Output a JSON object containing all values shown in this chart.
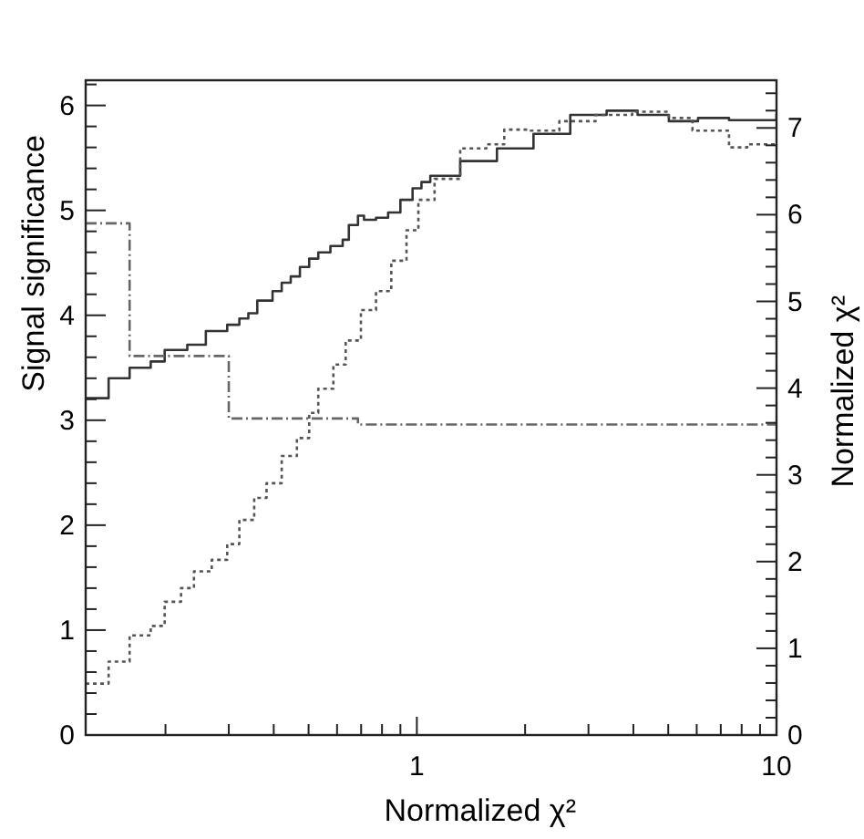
{
  "chart_data": {
    "type": "step",
    "xlabel": "Normalized χ²",
    "ylabel": "Signal significance",
    "y2label": "Normalized χ²",
    "log": "x",
    "xlim": [
      0.12,
      10
    ],
    "xticks": [
      {
        "value": 0.2,
        "label": null
      },
      {
        "value": 0.3,
        "label": null
      },
      {
        "value": 0.4,
        "label": null
      },
      {
        "value": 0.5,
        "label": null
      },
      {
        "value": 0.6,
        "label": null
      },
      {
        "value": 0.7,
        "label": null
      },
      {
        "value": 0.8,
        "label": null
      },
      {
        "value": 0.9,
        "label": null
      },
      1,
      {
        "value": 2,
        "label": null
      },
      {
        "value": 3,
        "label": null
      },
      {
        "value": 4,
        "label": null
      },
      {
        "value": 5,
        "label": null
      },
      {
        "value": 6,
        "label": null
      },
      {
        "value": 7,
        "label": null
      },
      {
        "value": 8,
        "label": null
      },
      {
        "value": 9,
        "label": null
      },
      10
    ],
    "ylim": [
      0,
      6.24
    ],
    "yticks": [
      0,
      {
        "value": 0.2,
        "label": null
      },
      {
        "value": 0.4,
        "label": null
      },
      {
        "value": 0.6,
        "label": null
      },
      {
        "value": 0.8,
        "label": null
      },
      1,
      {
        "value": 1.2,
        "label": null
      },
      {
        "value": 1.4,
        "label": null
      },
      {
        "value": 1.6,
        "label": null
      },
      {
        "value": 1.8,
        "label": null
      },
      2,
      {
        "value": 2.2,
        "label": null
      },
      {
        "value": 2.4,
        "label": null
      },
      {
        "value": 2.6,
        "label": null
      },
      {
        "value": 2.8,
        "label": null
      },
      3,
      {
        "value": 3.2,
        "label": null
      },
      {
        "value": 3.4,
        "label": null
      },
      {
        "value": 3.6,
        "label": null
      },
      {
        "value": 3.8,
        "label": null
      },
      4,
      {
        "value": 4.2,
        "label": null
      },
      {
        "value": 4.4,
        "label": null
      },
      {
        "value": 4.6,
        "label": null
      },
      {
        "value": 4.8,
        "label": null
      },
      5,
      {
        "value": 5.2,
        "label": null
      },
      {
        "value": 5.4,
        "label": null
      },
      {
        "value": 5.6,
        "label": null
      },
      {
        "value": 5.8,
        "label": null
      },
      6,
      {
        "value": 6.2,
        "label": null
      }
    ],
    "y2lim": [
      0,
      7.55
    ],
    "y2ticks": [
      0,
      {
        "value": 0.2,
        "label": null
      },
      {
        "value": 0.4,
        "label": null
      },
      {
        "value": 0.6,
        "label": null
      },
      {
        "value": 0.8,
        "label": null
      },
      1,
      {
        "value": 1.2,
        "label": null
      },
      {
        "value": 1.4,
        "label": null
      },
      {
        "value": 1.6,
        "label": null
      },
      {
        "value": 1.8,
        "label": null
      },
      2,
      {
        "value": 2.2,
        "label": null
      },
      {
        "value": 2.4,
        "label": null
      },
      {
        "value": 2.6,
        "label": null
      },
      {
        "value": 2.8,
        "label": null
      },
      3,
      {
        "value": 3.2,
        "label": null
      },
      {
        "value": 3.4,
        "label": null
      },
      {
        "value": 3.6,
        "label": null
      },
      {
        "value": 3.8,
        "label": null
      },
      4,
      {
        "value": 4.2,
        "label": null
      },
      {
        "value": 4.4,
        "label": null
      },
      {
        "value": 4.6,
        "label": null
      },
      {
        "value": 4.8,
        "label": null
      },
      5,
      {
        "value": 5.2,
        "label": null
      },
      {
        "value": 5.4,
        "label": null
      },
      {
        "value": 5.6,
        "label": null
      },
      {
        "value": 5.8,
        "label": null
      },
      6,
      {
        "value": 6.2,
        "label": null
      },
      {
        "value": 6.4,
        "label": null
      },
      {
        "value": 6.6,
        "label": null
      },
      {
        "value": 6.8,
        "label": null
      },
      7,
      {
        "value": 7.2,
        "label": null
      },
      {
        "value": 7.4,
        "label": null
      }
    ],
    "grid": false,
    "series": [
      {
        "color": "#333333",
        "line_style": "solid",
        "x": [
          0.12,
          0.139,
          0.159,
          0.182,
          0.199,
          0.23,
          0.259,
          0.297,
          0.321,
          0.34,
          0.36,
          0.397,
          0.421,
          0.446,
          0.473,
          0.502,
          0.532,
          0.575,
          0.622,
          0.647,
          0.686,
          0.713,
          0.77,
          0.832,
          0.9,
          0.973,
          1.03,
          1.09,
          1.32,
          1.67,
          2.11,
          2.67,
          3.37,
          4.11,
          5.02,
          6.05,
          7.38,
          10
        ],
        "values": [
          3.21,
          3.4,
          3.5,
          3.56,
          3.67,
          3.72,
          3.85,
          3.91,
          3.97,
          4.02,
          4.14,
          4.23,
          4.31,
          4.37,
          4.46,
          4.54,
          4.6,
          4.66,
          4.72,
          4.86,
          4.95,
          4.91,
          4.93,
          4.98,
          5.1,
          5.21,
          5.27,
          5.33,
          5.47,
          5.59,
          5.73,
          5.91,
          5.95,
          5.91,
          5.85,
          5.88,
          5.86,
          5.92
        ]
      },
      {
        "color": "#555555",
        "line_style": "dotted",
        "x": [
          0.12,
          0.139,
          0.159,
          0.182,
          0.199,
          0.221,
          0.24,
          0.269,
          0.297,
          0.321,
          0.353,
          0.382,
          0.421,
          0.464,
          0.502,
          0.532,
          0.586,
          0.634,
          0.699,
          0.77,
          0.849,
          0.936,
          1.01,
          1.12,
          1.32,
          1.56,
          1.75,
          2.04,
          2.49,
          3.14,
          3.97,
          5.02,
          5.84,
          7.38,
          8.29,
          10
        ],
        "values": [
          0.49,
          0.7,
          0.95,
          1.04,
          1.27,
          1.4,
          1.56,
          1.67,
          1.82,
          2.05,
          2.26,
          2.4,
          2.66,
          2.83,
          3.07,
          3.3,
          3.53,
          3.76,
          4.05,
          4.23,
          4.52,
          4.81,
          5.1,
          5.3,
          5.59,
          5.63,
          5.77,
          5.76,
          5.85,
          5.91,
          5.94,
          5.88,
          5.76,
          5.6,
          5.63,
          5.61
        ]
      },
      {
        "color": "#666666",
        "line_style": "dashed",
        "axis": "y2",
        "x": [
          0.12,
          0.159,
          0.3,
          0.686,
          10
        ],
        "values": [
          5.9,
          4.37,
          3.65,
          3.58,
          3.58
        ]
      }
    ]
  }
}
